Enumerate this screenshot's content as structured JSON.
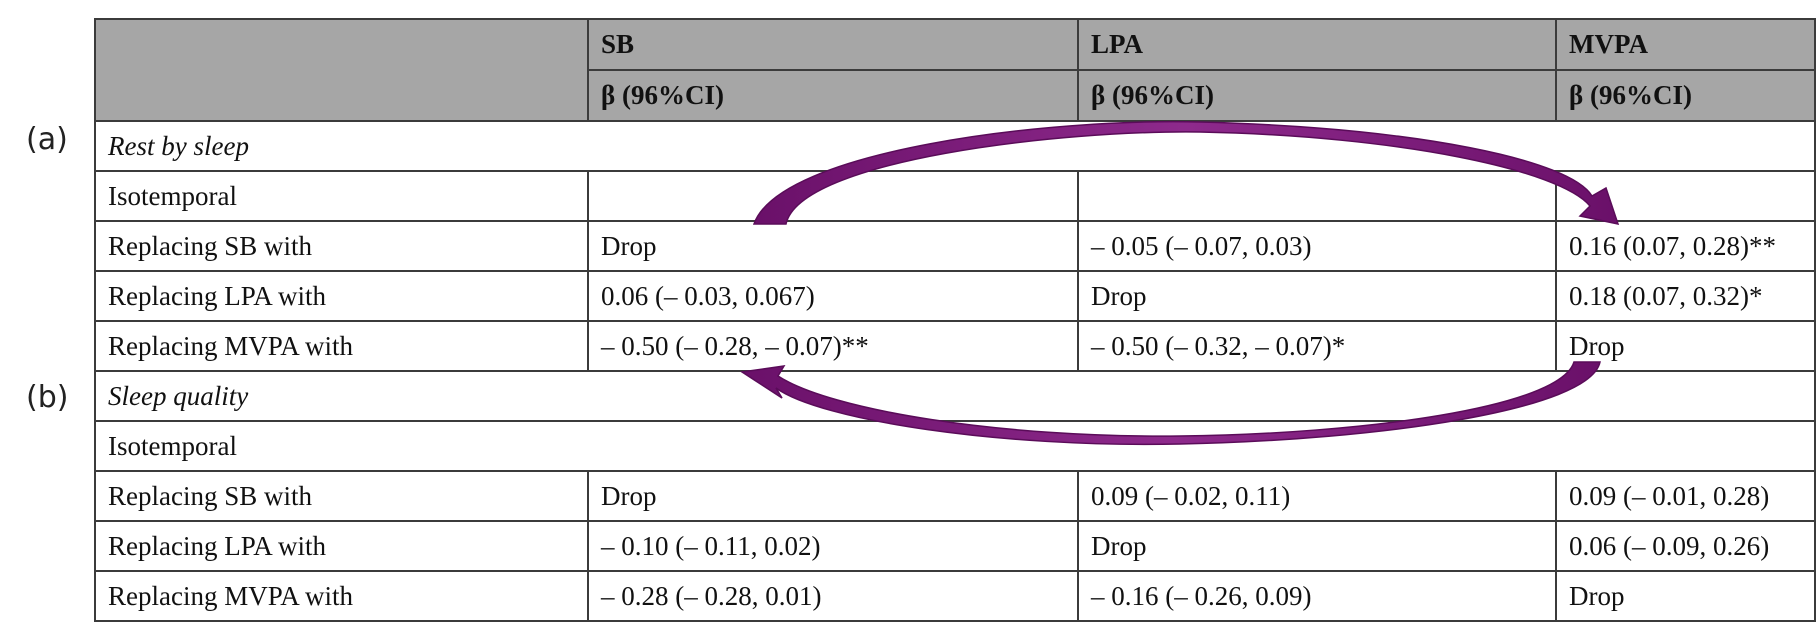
{
  "panel_labels": {
    "a": "(a)",
    "b": "(b)"
  },
  "header": {
    "row1": [
      "",
      "SB",
      "LPA",
      "MVPA"
    ],
    "row2": [
      "",
      "β (96%CI)",
      "β (96%CI)",
      "β (96%CI)"
    ]
  },
  "sections": [
    {
      "title": "Rest by sleep",
      "sub": "Isotemporal",
      "rows": [
        [
          "Replacing SB with",
          "Drop",
          "– 0.05 (– 0.07, 0.03)",
          "0.16 (0.07, 0.28)**"
        ],
        [
          "Replacing LPA with",
          "0.06 (– 0.03, 0.067)",
          "Drop",
          "0.18 (0.07, 0.32)*"
        ],
        [
          "Replacing MVPA with",
          "– 0.50 (– 0.28, – 0.07)**",
          "– 0.50 (– 0.32, – 0.07)*",
          "Drop"
        ]
      ]
    },
    {
      "title": "Sleep quality",
      "sub": "Isotemporal",
      "rows": [
        [
          "Replacing SB with",
          "Drop",
          "0.09 (– 0.02, 0.11)",
          "0.09 (– 0.01, 0.28)"
        ],
        [
          "Replacing LPA with",
          "– 0.10 (– 0.11, 0.02)",
          "Drop",
          "0.06 (– 0.09, 0.26)"
        ],
        [
          "Replacing MVPA with",
          "– 0.28 (– 0.28, 0.01)",
          "– 0.16 (– 0.26, 0.09)",
          "Drop"
        ]
      ]
    }
  ],
  "colors": {
    "arrow": "#7b1a7a",
    "header_bg": "#a6a6a6",
    "border": "#3b3b3b"
  }
}
